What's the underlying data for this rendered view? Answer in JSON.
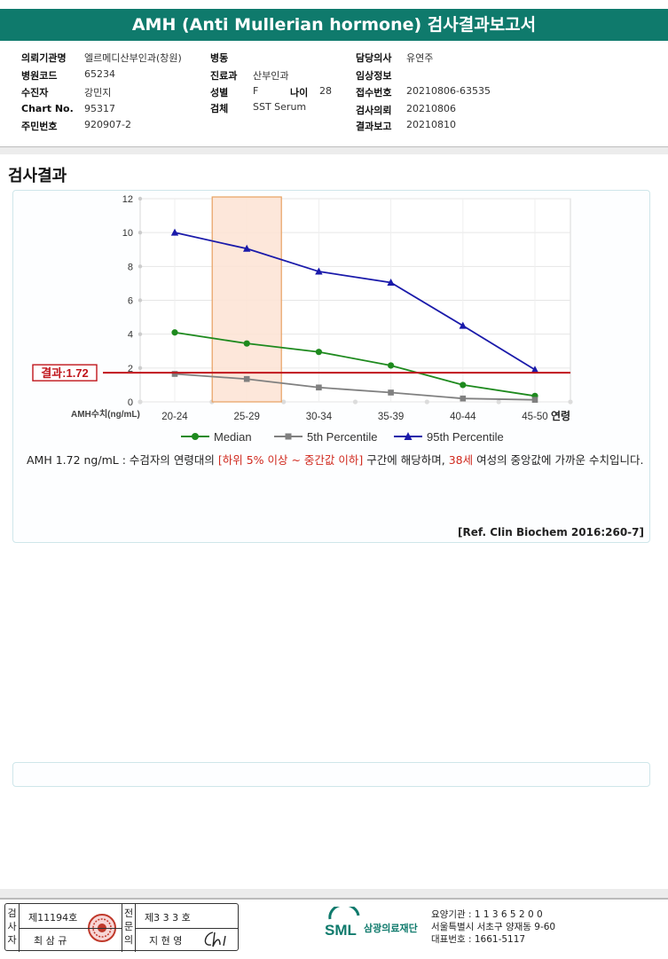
{
  "report": {
    "title": "AMH (Anti Mullerian hormone) 검사결과보고서"
  },
  "info": {
    "c1": [
      {
        "label": "의뢰기관명",
        "value": "엘르메디산부인과(창원)"
      },
      {
        "label": "병원코드",
        "value": "65234"
      },
      {
        "label": "수진자",
        "value": "강민지"
      },
      {
        "label": "Chart No.",
        "value": "95317"
      },
      {
        "label": "주민번호",
        "value": "920907-2"
      }
    ],
    "c2": [
      {
        "label": "병동",
        "value": ""
      },
      {
        "label": "진료과",
        "value": "산부인과"
      },
      {
        "label": "성별",
        "value": "F"
      },
      {
        "label": "검체",
        "value": "SST Serum"
      }
    ],
    "age": {
      "label": "나이",
      "value": "28"
    },
    "c3": [
      {
        "label": "담당의사",
        "value": "유연주"
      },
      {
        "label": "임상정보",
        "value": ""
      },
      {
        "label": "접수번호",
        "value": "20210806-63535"
      },
      {
        "label": "검사의뢰",
        "value": "20210806"
      },
      {
        "label": "결과보고",
        "value": "20210810"
      }
    ]
  },
  "section": {
    "title": "검사결과"
  },
  "chart_data": {
    "type": "line",
    "categories": [
      "20-24",
      "25-29",
      "30-34",
      "35-39",
      "40-44",
      "45-50"
    ],
    "ylabel": "AMH수치(ng/mL)",
    "xlabel": "연령",
    "ylim": [
      0,
      12
    ],
    "yticks": [
      0,
      2,
      4,
      6,
      8,
      10,
      12
    ],
    "highlight_category": "25-29",
    "result_line": {
      "label": "결과:1.72",
      "value": 1.72
    },
    "series": [
      {
        "name": "Median",
        "values": [
          4.1,
          3.45,
          2.95,
          2.15,
          1.0,
          0.35
        ],
        "color": "#1e8a1e",
        "marker": "circle"
      },
      {
        "name": "5th Percentile",
        "values": [
          1.65,
          1.35,
          0.85,
          0.55,
          0.2,
          0.12
        ],
        "color": "#808080",
        "marker": "square"
      },
      {
        "name": "95th Percentile",
        "values": [
          10.0,
          9.05,
          7.7,
          7.05,
          4.5,
          1.9
        ],
        "color": "#1a1aaa",
        "marker": "triangle"
      }
    ],
    "colors": {
      "result": "#c0151b",
      "highlight_fill": "#fde3d3",
      "highlight_stroke": "#e8a060",
      "grid": "#e6e6e6"
    }
  },
  "comment": {
    "p1": "AMH  1.72 ng/mL : 수검자의 연령대의 ",
    "r1": "[하위 5% 이상 ~ 중간값 이하]",
    "p2": "  구간에 해당하며, ",
    "r2": "38세",
    "p3": " 여성의 중앙값에 가까운 수치입니다."
  },
  "reference": "[Ref. Clin Biochem 2016:260-7]",
  "signature": {
    "left_label": "검사자",
    "left_no": "제11194호",
    "left_name": "최 삼 규",
    "right_label": "전문의",
    "right_no": "제3 3 3 호",
    "right_name": "지 현 영"
  },
  "org": {
    "logo": "SML",
    "name": "삼광의료재단",
    "line1": "요양기관 : 1 1 3 6 5 2 0 0",
    "line2": "서울특별시 서초구 양재동 9-60",
    "line3": "대표번호 : 1661-5117"
  }
}
